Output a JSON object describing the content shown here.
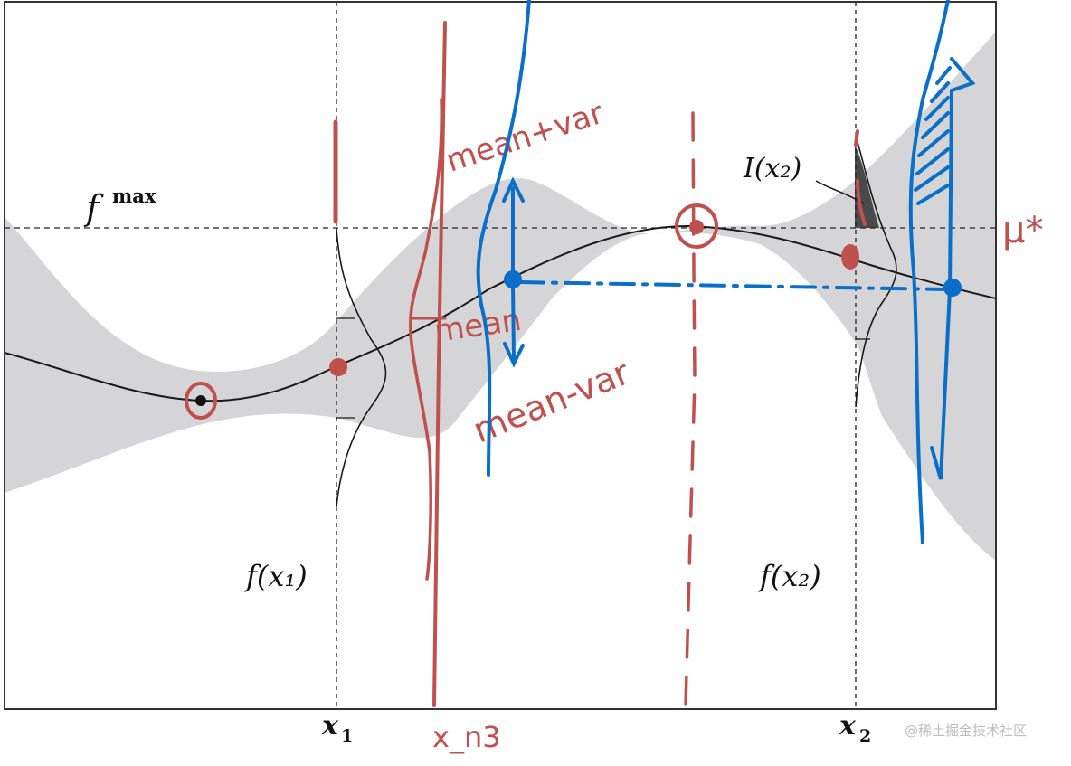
{
  "labels": {
    "fmax_base": "f",
    "fmax_sup": "max",
    "fx1": "f(x₁)",
    "fx2": "f(x₂)",
    "Ix2": "I(x₂)",
    "x1_base": "x",
    "x1_sub": "1",
    "x2_base": "x",
    "x2_sub": "2"
  },
  "annotations": {
    "mean_plus_var": "mean+var",
    "mean": "mean",
    "mean_minus_var": "mean-var",
    "mu_star": "μ*",
    "x_n3": "x_n3"
  },
  "watermark": "@稀土掘金技术社区",
  "colors": {
    "band": "#d5d5d7",
    "curve": "#1a1a1a",
    "red": "#c0504d",
    "blue": "#0a6fc9",
    "improvement": "#4a4a4a"
  }
}
